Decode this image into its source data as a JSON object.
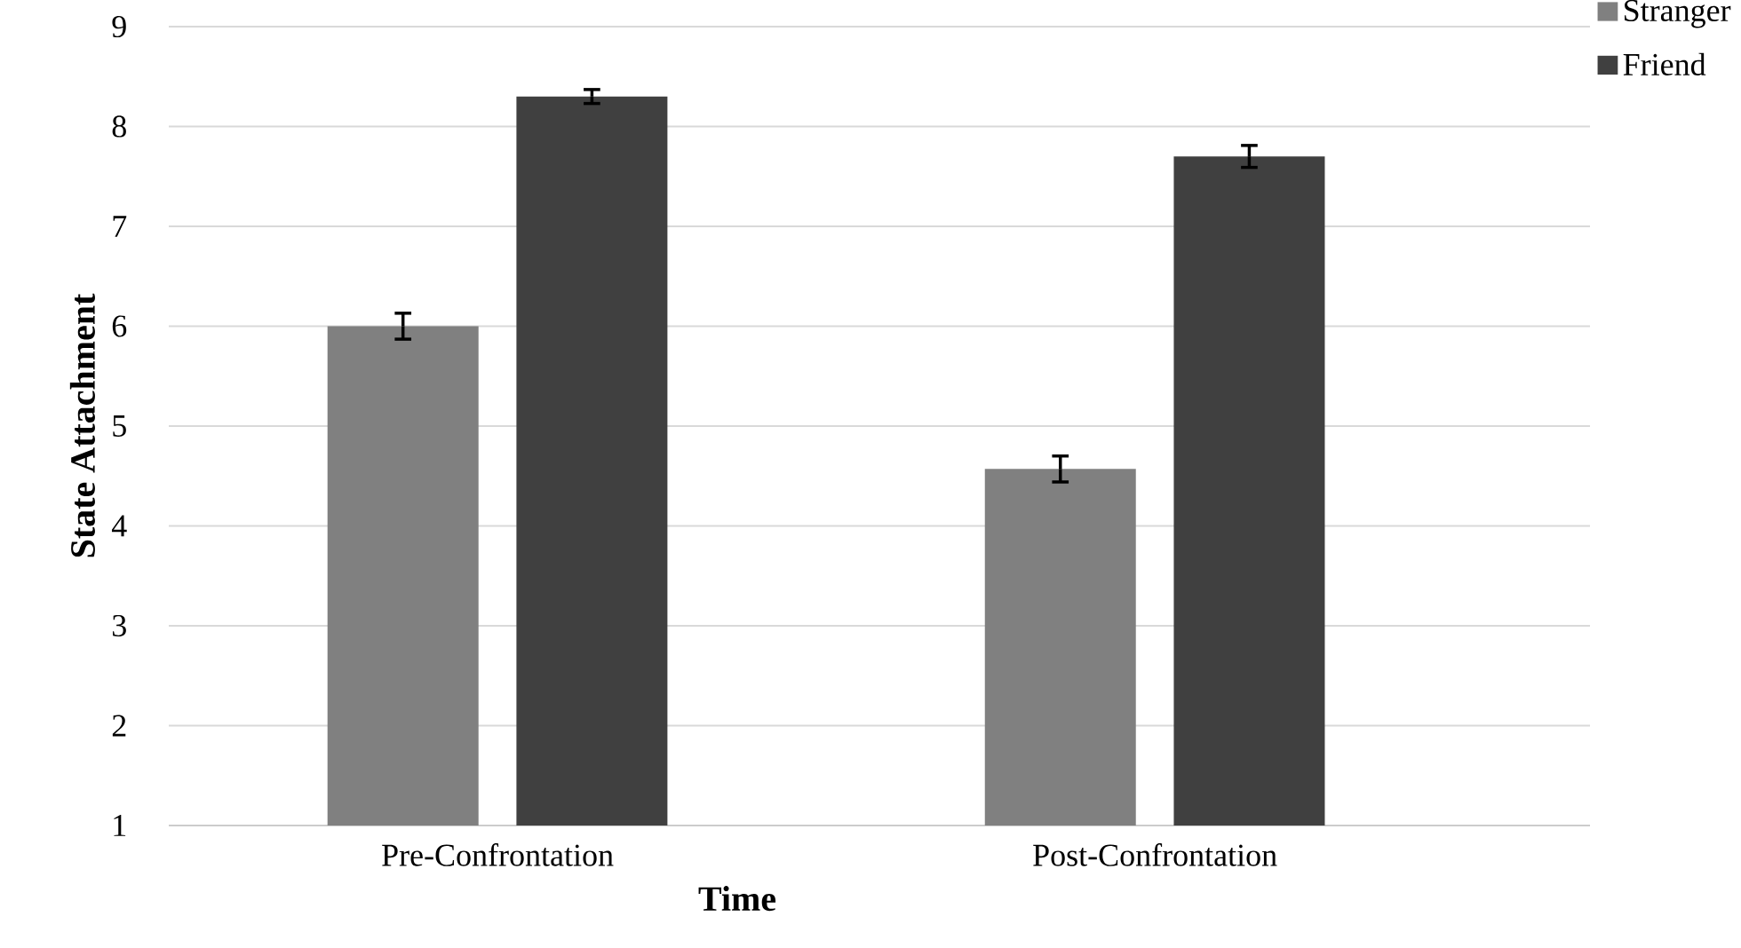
{
  "chart_data": {
    "type": "bar",
    "xlabel": "Time",
    "ylabel": "State Attachment",
    "categories": [
      "Pre-Confrontation",
      "Post-Confrontation"
    ],
    "series": [
      {
        "name": "Stranger",
        "color": "#808080",
        "values": [
          6.0,
          4.57
        ],
        "errors": [
          0.13,
          0.13
        ]
      },
      {
        "name": "Friend",
        "color": "#404040",
        "values": [
          8.3,
          7.7
        ],
        "errors": [
          0.07,
          0.11
        ]
      }
    ],
    "ylim": [
      1,
      9
    ],
    "yticks": [
      1,
      2,
      3,
      4,
      5,
      6,
      7,
      8,
      9
    ],
    "grid": "y",
    "legend": "top right"
  }
}
